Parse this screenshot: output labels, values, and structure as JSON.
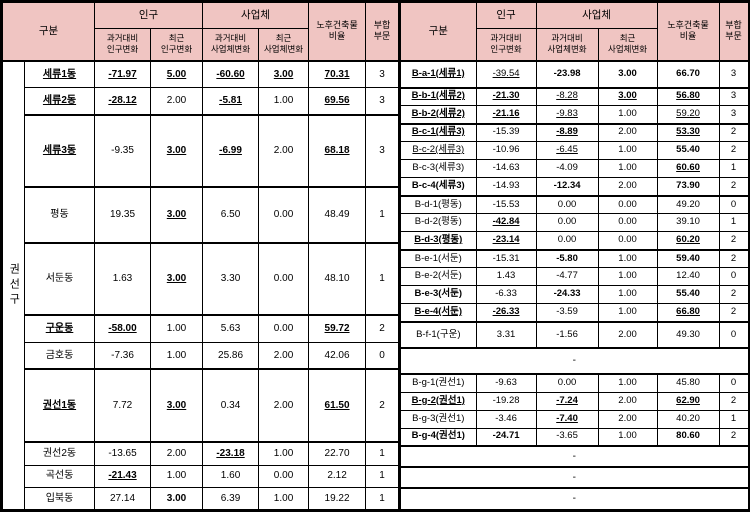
{
  "colors": {
    "header_bg": "#f0c5c2",
    "border": "#000000",
    "page_bg": "#ffffff"
  },
  "left_table": {
    "region_label": "권선구",
    "header": {
      "gubun": "구분",
      "ingu": "인구",
      "saeopche": "사업체",
      "sub": [
        "과거대비\n인구변화",
        "최근\n인구변화",
        "과거대비\n사업체변화",
        "최근\n사업체변화"
      ],
      "nohu": "노후건축물\n비율",
      "buhap": "부합\n부문"
    },
    "rows": [
      {
        "name": "세류1동",
        "ns": "bu",
        "cells": [
          [
            "-71.97",
            "bu"
          ],
          [
            "5.00",
            "bu"
          ],
          [
            "-60.60",
            "bu"
          ],
          [
            "3.00",
            "bu"
          ],
          [
            "70.31",
            "bu"
          ],
          [
            "3",
            ""
          ]
        ]
      },
      {
        "name": "세류2동",
        "ns": "bu",
        "cells": [
          [
            "-28.12",
            "bu"
          ],
          [
            "2.00",
            ""
          ],
          [
            "-5.81",
            "bu"
          ],
          [
            "1.00",
            ""
          ],
          [
            "69.56",
            "bu"
          ],
          [
            "3",
            ""
          ]
        ]
      },
      {
        "name": "세류3동",
        "ns": "bu",
        "cells": [
          [
            "-9.35",
            ""
          ],
          [
            "3.00",
            "bu"
          ],
          [
            "-6.99",
            "bu"
          ],
          [
            "2.00",
            ""
          ],
          [
            "68.18",
            "bu"
          ],
          [
            "3",
            ""
          ]
        ]
      },
      {
        "name": "평동",
        "ns": "",
        "cells": [
          [
            "19.35",
            ""
          ],
          [
            "3.00",
            "bu"
          ],
          [
            "6.50",
            ""
          ],
          [
            "0.00",
            ""
          ],
          [
            "48.49",
            ""
          ],
          [
            "1",
            ""
          ]
        ]
      },
      {
        "name": "서둔동",
        "ns": "",
        "cells": [
          [
            "1.63",
            ""
          ],
          [
            "3.00",
            "bu"
          ],
          [
            "3.30",
            ""
          ],
          [
            "0.00",
            ""
          ],
          [
            "48.10",
            ""
          ],
          [
            "1",
            ""
          ]
        ]
      },
      {
        "name": "구운동",
        "ns": "bu",
        "cells": [
          [
            "-58.00",
            "bu"
          ],
          [
            "1.00",
            ""
          ],
          [
            "5.63",
            ""
          ],
          [
            "0.00",
            ""
          ],
          [
            "59.72",
            "bu"
          ],
          [
            "2",
            ""
          ]
        ]
      },
      {
        "name": "금호동",
        "ns": "",
        "cells": [
          [
            "-7.36",
            ""
          ],
          [
            "1.00",
            ""
          ],
          [
            "25.86",
            ""
          ],
          [
            "2.00",
            ""
          ],
          [
            "42.06",
            ""
          ],
          [
            "0",
            ""
          ]
        ]
      },
      {
        "name": "권선1동",
        "ns": "bu",
        "cells": [
          [
            "7.72",
            ""
          ],
          [
            "3.00",
            "bu"
          ],
          [
            "0.34",
            ""
          ],
          [
            "2.00",
            ""
          ],
          [
            "61.50",
            "bu"
          ],
          [
            "2",
            ""
          ]
        ]
      },
      {
        "name": "권선2동",
        "ns": "",
        "cells": [
          [
            "-13.65",
            ""
          ],
          [
            "2.00",
            ""
          ],
          [
            "-23.18",
            "bu"
          ],
          [
            "1.00",
            ""
          ],
          [
            "22.70",
            ""
          ],
          [
            "1",
            ""
          ]
        ]
      },
      {
        "name": "곡선동",
        "ns": "",
        "cells": [
          [
            "-21.43",
            "bu"
          ],
          [
            "1.00",
            ""
          ],
          [
            "1.60",
            ""
          ],
          [
            "0.00",
            ""
          ],
          [
            "2.12",
            ""
          ],
          [
            "1",
            ""
          ]
        ]
      },
      {
        "name": "입북동",
        "ns": "",
        "cells": [
          [
            "27.14",
            ""
          ],
          [
            "3.00",
            "b"
          ],
          [
            "6.39",
            ""
          ],
          [
            "1.00",
            ""
          ],
          [
            "19.22",
            ""
          ],
          [
            "1",
            ""
          ]
        ]
      }
    ]
  },
  "right_table": {
    "header": {
      "gubun": "구분",
      "ingu": "인구",
      "saeopche": "사업체",
      "sub": [
        "과거대비\n인구변화",
        "과거대비\n사업체변화",
        "최근\n사업체변화"
      ],
      "nohu": "노후건축물\n비율",
      "buhap": "부합\n부문"
    },
    "rows": [
      {
        "name": "B-a-1(세류1)",
        "ns": "bu",
        "cells": [
          [
            "-39.54",
            "u"
          ],
          [
            "-23.98",
            "b"
          ],
          [
            "3.00",
            "b"
          ],
          [
            "66.70",
            "b"
          ],
          [
            "3",
            ""
          ]
        ]
      },
      {
        "name": "B-b-1(세류2)",
        "ns": "bu",
        "cells": [
          [
            "-21.30",
            "bu"
          ],
          [
            "-8.28",
            "u"
          ],
          [
            "3.00",
            "bu"
          ],
          [
            "56.80",
            "bu"
          ],
          [
            "3",
            ""
          ]
        ]
      },
      {
        "name": "B-b-2(세류2)",
        "ns": "bu",
        "cells": [
          [
            "-21.16",
            "bu"
          ],
          [
            "-9.83",
            "u"
          ],
          [
            "1.00",
            ""
          ],
          [
            "59.20",
            "u"
          ],
          [
            "3",
            ""
          ]
        ]
      },
      {
        "name": "B-c-1(세류3)",
        "ns": "bu",
        "cells": [
          [
            "-15.39",
            ""
          ],
          [
            "-8.89",
            "bu"
          ],
          [
            "2.00",
            ""
          ],
          [
            "53.30",
            "bu"
          ],
          [
            "2",
            ""
          ]
        ]
      },
      {
        "name": "B-c-2(세류3)",
        "ns": "u",
        "cells": [
          [
            "-10.96",
            ""
          ],
          [
            "-6.45",
            "u"
          ],
          [
            "1.00",
            ""
          ],
          [
            "55.40",
            "b"
          ],
          [
            "2",
            ""
          ]
        ]
      },
      {
        "name": "B-c-3(세류3)",
        "ns": "",
        "cells": [
          [
            "-14.63",
            ""
          ],
          [
            "-4.09",
            ""
          ],
          [
            "1.00",
            ""
          ],
          [
            "60.60",
            "bu"
          ],
          [
            "1",
            ""
          ]
        ]
      },
      {
        "name": "B-c-4(세류3)",
        "ns": "b",
        "cells": [
          [
            "-14.93",
            ""
          ],
          [
            "-12.34",
            "b"
          ],
          [
            "2.00",
            ""
          ],
          [
            "73.90",
            "b"
          ],
          [
            "2",
            ""
          ]
        ]
      },
      {
        "name": "B-d-1(평동)",
        "ns": "",
        "cells": [
          [
            "-15.53",
            ""
          ],
          [
            "0.00",
            ""
          ],
          [
            "0.00",
            ""
          ],
          [
            "49.20",
            ""
          ],
          [
            "0",
            ""
          ]
        ]
      },
      {
        "name": "B-d-2(평동)",
        "ns": "",
        "cells": [
          [
            "-42.84",
            "bu"
          ],
          [
            "0.00",
            ""
          ],
          [
            "0.00",
            ""
          ],
          [
            "39.10",
            ""
          ],
          [
            "1",
            ""
          ]
        ]
      },
      {
        "name": "B-d-3(평동)",
        "ns": "bu",
        "cells": [
          [
            "-23.14",
            "bu"
          ],
          [
            "0.00",
            ""
          ],
          [
            "0.00",
            ""
          ],
          [
            "60.20",
            "bu"
          ],
          [
            "2",
            ""
          ]
        ]
      },
      {
        "name": "B-e-1(서둔)",
        "ns": "",
        "cells": [
          [
            "-15.31",
            ""
          ],
          [
            "-5.80",
            "b"
          ],
          [
            "1.00",
            ""
          ],
          [
            "59.40",
            "b"
          ],
          [
            "2",
            ""
          ]
        ]
      },
      {
        "name": "B-e-2(서둔)",
        "ns": "",
        "cells": [
          [
            "1.43",
            ""
          ],
          [
            "-4.77",
            ""
          ],
          [
            "1.00",
            ""
          ],
          [
            "12.40",
            ""
          ],
          [
            "0",
            ""
          ]
        ]
      },
      {
        "name": "B-e-3(서둔)",
        "ns": "b",
        "cells": [
          [
            "-6.33",
            ""
          ],
          [
            "-24.33",
            "b"
          ],
          [
            "1.00",
            ""
          ],
          [
            "55.40",
            "b"
          ],
          [
            "2",
            ""
          ]
        ]
      },
      {
        "name": "B-e-4(서둔)",
        "ns": "bu",
        "cells": [
          [
            "-26.33",
            "bu"
          ],
          [
            "-3.59",
            ""
          ],
          [
            "1.00",
            ""
          ],
          [
            "66.80",
            "bu"
          ],
          [
            "2",
            ""
          ]
        ]
      },
      {
        "name": "B-f-1(구운)",
        "ns": "",
        "cells": [
          [
            "3.31",
            ""
          ],
          [
            "-1.56",
            ""
          ],
          [
            "2.00",
            ""
          ],
          [
            "49.30",
            ""
          ],
          [
            "0",
            ""
          ]
        ]
      },
      {
        "dash": "-"
      },
      {
        "name": "B-g-1(권선1)",
        "ns": "",
        "cells": [
          [
            "-9.63",
            ""
          ],
          [
            "0.00",
            ""
          ],
          [
            "1.00",
            ""
          ],
          [
            "45.80",
            ""
          ],
          [
            "0",
            ""
          ]
        ]
      },
      {
        "name": "B-g-2(권선1)",
        "ns": "bu",
        "cells": [
          [
            "-19.28",
            ""
          ],
          [
            "-7.24",
            "bu"
          ],
          [
            "2.00",
            ""
          ],
          [
            "62.90",
            "bu"
          ],
          [
            "2",
            ""
          ]
        ]
      },
      {
        "name": "B-g-3(권선1)",
        "ns": "",
        "cells": [
          [
            "-3.46",
            ""
          ],
          [
            "-7.40",
            "bu"
          ],
          [
            "2.00",
            ""
          ],
          [
            "40.20",
            ""
          ],
          [
            "1",
            ""
          ]
        ]
      },
      {
        "name": "B-g-4(권선1)",
        "ns": "b",
        "cells": [
          [
            "-24.71",
            "b"
          ],
          [
            "-3.65",
            ""
          ],
          [
            "1.00",
            ""
          ],
          [
            "80.60",
            "b"
          ],
          [
            "2",
            ""
          ]
        ]
      },
      {
        "dash": "-"
      },
      {
        "dash": "-"
      },
      {
        "dash": "-"
      }
    ]
  }
}
